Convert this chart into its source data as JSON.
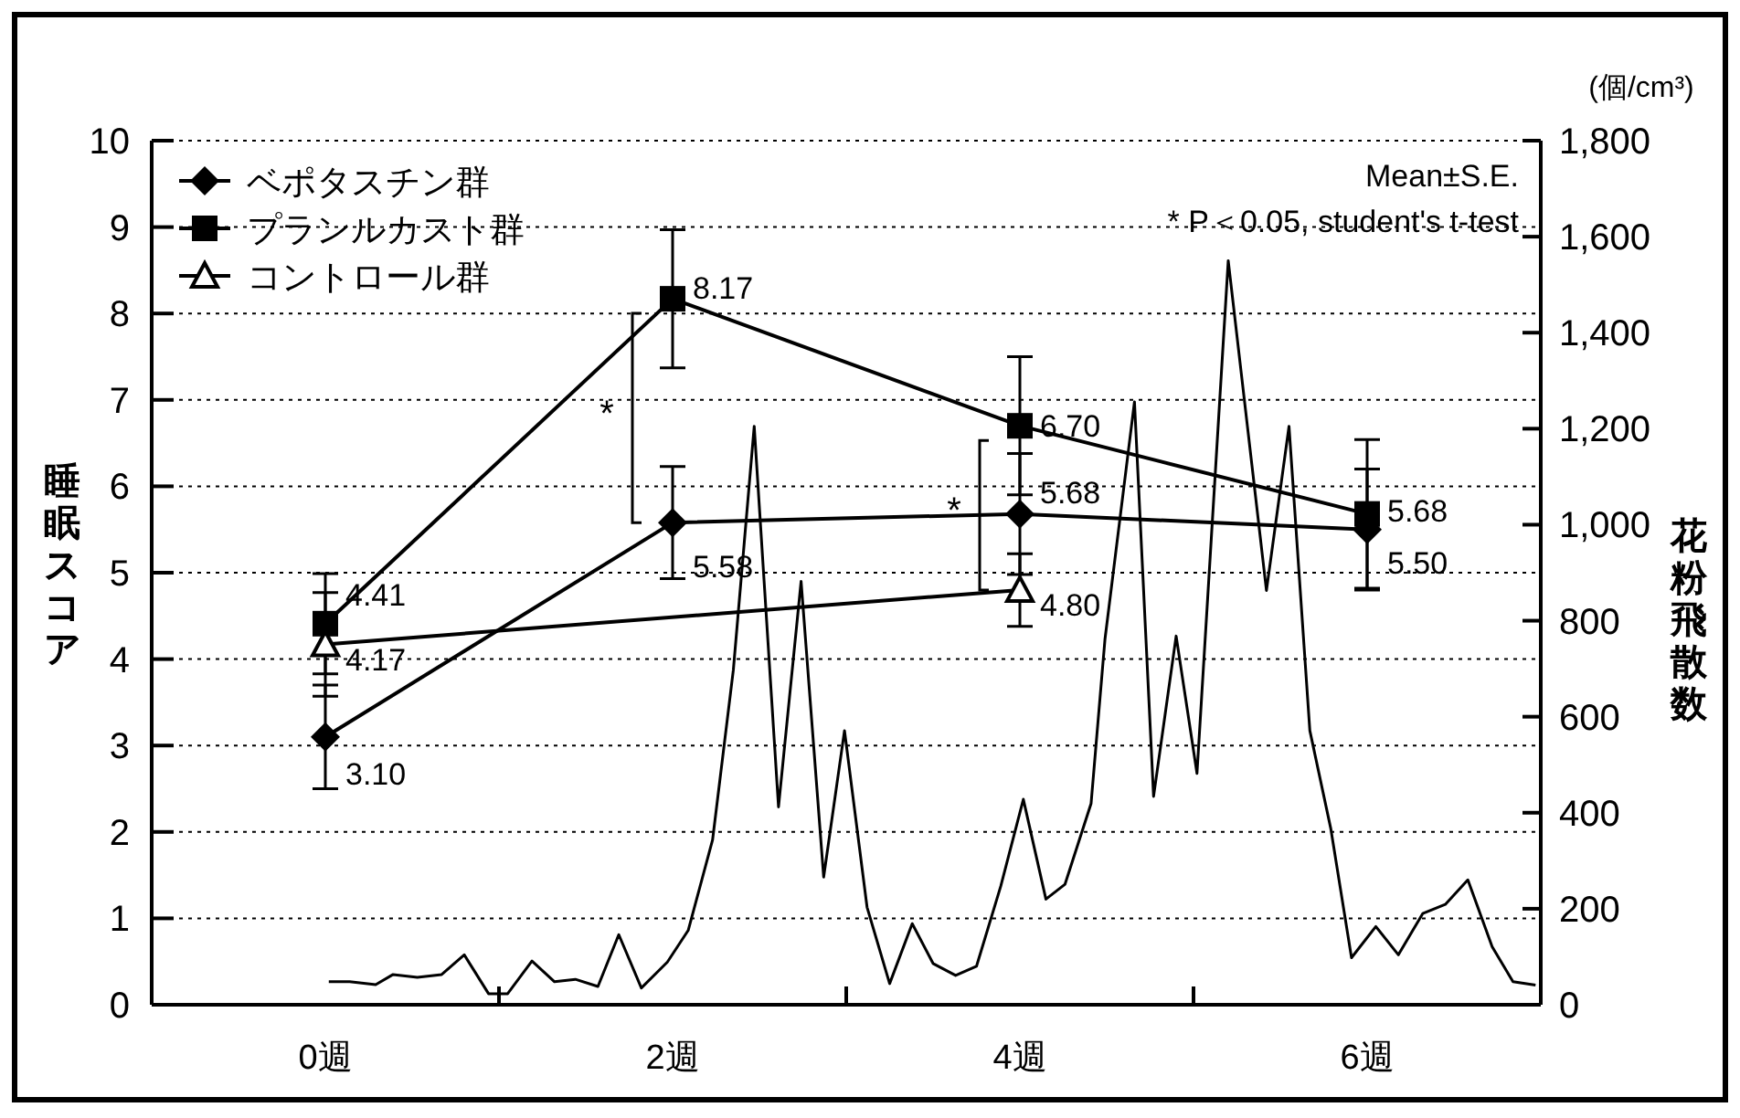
{
  "chart_data": {
    "type": "line",
    "ylabel": "睡眠スコア",
    "y2label": "花粉飛散数",
    "annotations": [
      "(個/cm³)",
      "Mean±S.E.",
      "* P＜0.05, student's t-test",
      "*",
      "*"
    ],
    "xlim": [
      -1,
      7
    ],
    "xticks": [
      {
        "value": 0,
        "label": "0週"
      },
      {
        "value": 1,
        "label": null
      },
      {
        "value": 2,
        "label": "2週"
      },
      {
        "value": 3,
        "label": null
      },
      {
        "value": 4,
        "label": "4週"
      },
      {
        "value": 5,
        "label": null
      },
      {
        "value": 6,
        "label": "6週"
      }
    ],
    "ylim": [
      0,
      10
    ],
    "yticks": [
      0,
      1,
      2,
      3,
      4,
      5,
      6,
      7,
      8,
      9,
      10
    ],
    "y2lim": [
      0,
      1800
    ],
    "y2ticks": [
      {
        "value": 0,
        "label": "0"
      },
      {
        "value": 200,
        "label": "200"
      },
      {
        "value": 400,
        "label": "400"
      },
      {
        "value": 600,
        "label": "600"
      },
      {
        "value": 800,
        "label": "800"
      },
      {
        "value": 1000,
        "label": "1,000"
      },
      {
        "value": 1200,
        "label": "1,200"
      },
      {
        "value": 1400,
        "label": "1,400"
      },
      {
        "value": 1600,
        "label": "1,600"
      },
      {
        "value": 1800,
        "label": "1,800"
      }
    ],
    "grid": "y",
    "legend": "top left",
    "series": [
      {
        "name": "ベポタスチン群",
        "color": "#000000",
        "marker": "diamond",
        "x": [
          0,
          2,
          4,
          6
        ],
        "values": [
          3.1,
          5.58,
          5.68,
          5.5
        ],
        "errors": [
          0.6,
          0.65,
          0.7,
          0.7
        ],
        "value_labels": [
          "3.10",
          "5.58",
          "5.68",
          "5.50"
        ]
      },
      {
        "name": "プランルカスト群",
        "color": "#000000",
        "marker": "square",
        "x": [
          0,
          2,
          4,
          6
        ],
        "values": [
          4.41,
          8.17,
          6.7,
          5.68
        ],
        "errors": [
          0.58,
          0.8,
          0.8,
          0.86
        ],
        "value_labels": [
          "4.41",
          "8.17",
          "6.70",
          "5.68"
        ]
      },
      {
        "name": "コントロール群",
        "color": "#000000",
        "marker": "triangle",
        "x": [
          0,
          4
        ],
        "values": [
          4.17,
          4.8
        ],
        "errors": [
          0.6,
          0.42
        ],
        "value_labels": [
          "4.17",
          "4.80"
        ]
      },
      {
        "type": "line",
        "axis": "y2",
        "color": "#000000",
        "marker": "none",
        "x": [
          0.02,
          0.14,
          0.29,
          0.39,
          0.53,
          0.67,
          0.8,
          0.94,
          1.05,
          1.19,
          1.32,
          1.44,
          1.57,
          1.69,
          1.82,
          1.97,
          2.09,
          2.23,
          2.35,
          2.47,
          2.61,
          2.74,
          2.87,
          2.99,
          3.12,
          3.25,
          3.38,
          3.5,
          3.63,
          3.75,
          3.89,
          4.02,
          4.15,
          4.26,
          4.41,
          4.49,
          4.66,
          4.77,
          4.9,
          5.02,
          5.2,
          5.42,
          5.55,
          5.67,
          5.79,
          5.91,
          6.05,
          6.18,
          6.32,
          6.45,
          6.58,
          6.72,
          6.84,
          6.97
        ],
        "values": [
          48,
          48,
          42,
          63,
          57,
          63,
          104,
          23,
          23,
          91,
          48,
          53,
          38,
          146,
          35,
          89,
          155,
          343,
          698,
          1205,
          412,
          882,
          266,
          571,
          203,
          44,
          169,
          86,
          61,
          80,
          247,
          428,
          220,
          251,
          419,
          761,
          1256,
          434,
          768,
          482,
          1550,
          863,
          1205,
          571,
          368,
          98,
          163,
          104,
          190,
          209,
          260,
          121,
          48,
          41
        ]
      }
    ]
  }
}
